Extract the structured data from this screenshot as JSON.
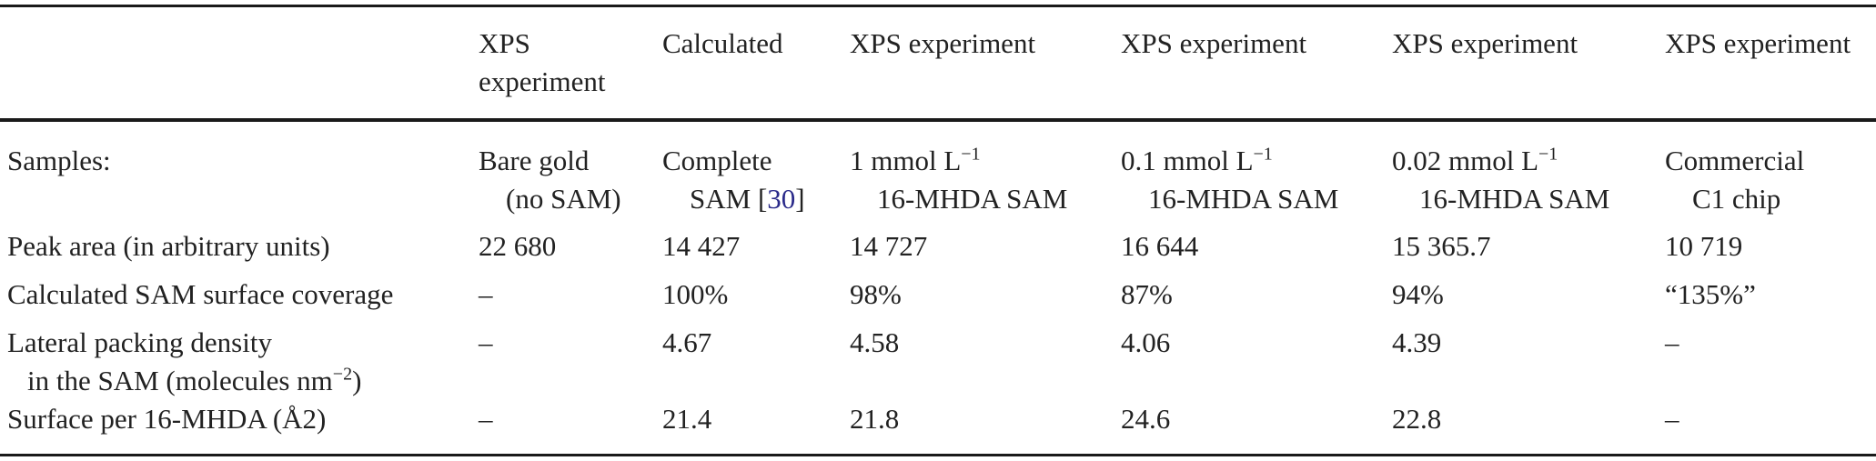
{
  "table": {
    "headers": [
      "",
      [
        "XPS",
        "experiment"
      ],
      "Calculated",
      "XPS experiment",
      "XPS experiment",
      "XPS experiment",
      "XPS experiment"
    ],
    "samples_row": {
      "label": "Samples:",
      "cells": [
        [
          "Bare gold",
          "(no SAM)"
        ],
        [
          "Complete",
          "SAM [",
          "30",
          "]"
        ],
        [
          "1 mmol L",
          "−1",
          "16-MHDA SAM"
        ],
        [
          "0.1 mmol L",
          "−1",
          "16-MHDA SAM"
        ],
        [
          "0.02 mmol L",
          "−1",
          "16-MHDA SAM"
        ],
        [
          "Commercial",
          "C1 chip"
        ]
      ]
    },
    "rows": [
      {
        "label": "Peak area (in arbitrary units)",
        "values": [
          "22 680",
          "14 427",
          "14 727",
          "16 644",
          "15 365.7",
          "10 719"
        ]
      },
      {
        "label": "Calculated SAM surface coverage",
        "values": [
          "–",
          "100%",
          "98%",
          "87%",
          "94%",
          "“135%”"
        ]
      },
      {
        "label_line1": "Lateral packing density",
        "label_line2": "in the SAM (molecules nm",
        "label_sup": "−2",
        "label_close": ")",
        "values": [
          "–",
          "4.67",
          "4.58",
          "4.06",
          "4.39",
          "–"
        ]
      },
      {
        "label": "Surface per 16-MHDA (Å2)",
        "values": [
          "–",
          "21.4",
          "21.8",
          "24.6",
          "22.8",
          "–"
        ]
      }
    ]
  }
}
